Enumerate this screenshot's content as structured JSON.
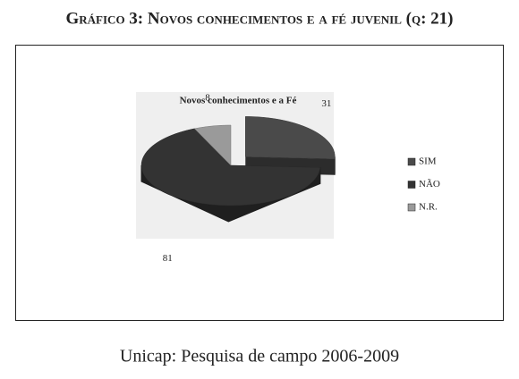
{
  "header": {
    "title": "Gráfico 3: Novos conhecimentos e a fé juvenil (q: 21)"
  },
  "chart_data": {
    "type": "pie3d",
    "title": "Novos conhecimentos e a Fé",
    "categories": [
      "SIM",
      "NÃO",
      "N.R."
    ],
    "values": [
      31,
      81,
      8
    ],
    "colors": [
      "#4a4a4a",
      "#333333",
      "#9a9a9a"
    ],
    "explode": [
      "SIM"
    ],
    "legend": "right"
  },
  "source": "Unicap: Pesquisa de campo 2006-2009"
}
